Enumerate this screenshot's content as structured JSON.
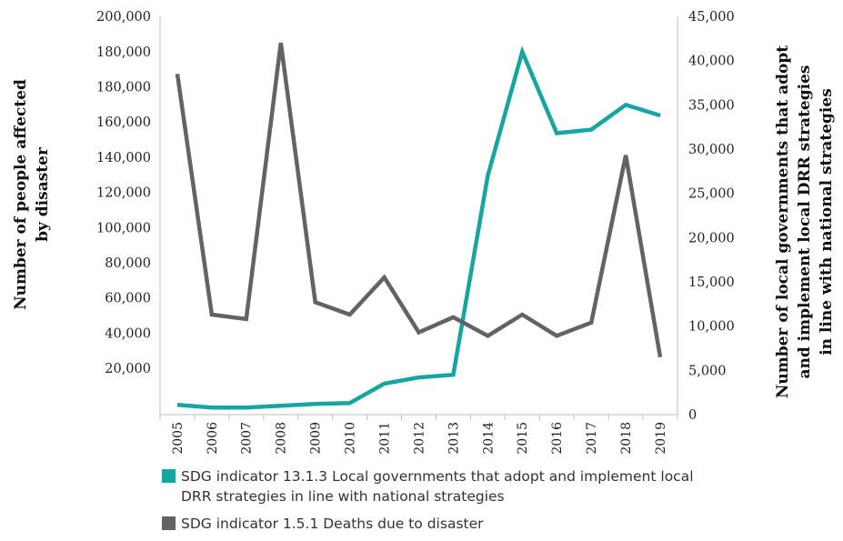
{
  "chart_data": {
    "type": "line",
    "categories": [
      "2005",
      "2006",
      "2007",
      "2008",
      "2009",
      "2010",
      "2011",
      "2012",
      "2013",
      "2014",
      "2015",
      "2016",
      "2017",
      "2018",
      "2019"
    ],
    "left_axis": {
      "label_lines": [
        "Number  of people affected",
        "by disaster"
      ],
      "ticks": [
        "200,000",
        "180,000",
        "180,000",
        "160,000",
        "140,000",
        "120,000",
        "100,000",
        "80,000",
        "60,000",
        "40,000",
        "20,000"
      ]
    },
    "right_axis": {
      "label_lines": [
        "Number  of local governments that adopt",
        "and implement local DRR strategies",
        "in line with national strategies"
      ],
      "ylim": [
        0,
        45000
      ],
      "ticks": [
        "45,000",
        "40,000",
        "35,000",
        "30,000",
        "25,000",
        "20,000",
        "15,000",
        "10,000",
        "5,000",
        "0"
      ]
    },
    "series": [
      {
        "name": "SDG indicator 13.1.3  Local governments that adopt and implement local DRR strategies in line with national strategies",
        "color": "#16a5a1",
        "axis": "right",
        "values": [
          1100,
          800,
          800,
          1000,
          1200,
          1300,
          3500,
          4200,
          4500,
          27000,
          41000,
          31800,
          32200,
          35000,
          33800
        ]
      },
      {
        "name": "SDG indicator 1.5.1 Deaths due to disaster",
        "color": "#636363",
        "axis": "right",
        "values": [
          38500,
          11300,
          10800,
          42000,
          12700,
          11300,
          15500,
          9300,
          11000,
          8900,
          11300,
          8900,
          10400,
          29300,
          6500
        ]
      }
    ],
    "grid": false,
    "legend_position": "bottom"
  }
}
